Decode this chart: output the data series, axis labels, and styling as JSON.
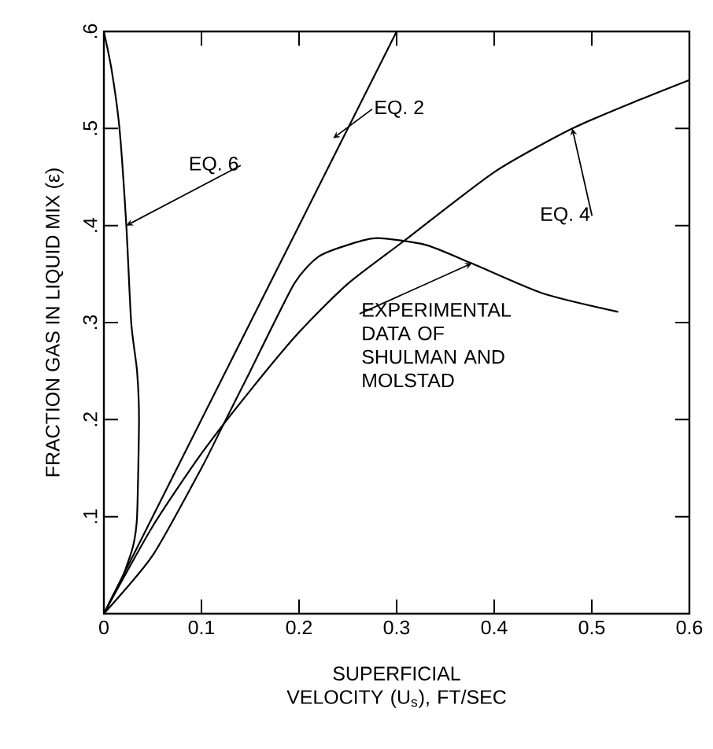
{
  "chart_data": {
    "type": "line",
    "xlabel": "SUPERFICIAL VELOCITY (U$_{s}$), FT/SEC",
    "ylabel": "FRACTION GAS IN LIQUID MIX (ε)",
    "xlim": [
      0,
      0.6
    ],
    "ylim": [
      0,
      0.6
    ],
    "xticks": [
      0,
      {
        "value": 0.1,
        "label": "0.1"
      },
      {
        "value": 0.2,
        "label": "0.2"
      },
      {
        "value": 0.3,
        "label": "0.3"
      },
      {
        "value": 0.4,
        "label": "0.4"
      },
      {
        "value": 0.5,
        "label": "0.5"
      },
      {
        "value": 0.6,
        "label": "0.6"
      }
    ],
    "yticks": [
      {
        "value": 0,
        "label": null
      },
      {
        "value": 0.1,
        "label": ".1"
      },
      {
        "value": 0.2,
        "label": ".2"
      },
      {
        "value": 0.3,
        "label": ".3"
      },
      {
        "value": 0.4,
        "label": ".4"
      },
      {
        "value": 0.5,
        "label": ".5"
      },
      {
        "value": 0.6,
        "label": ".6"
      }
    ],
    "grid": false,
    "marker": "none",
    "line_style": "solid",
    "series": [
      {
        "color": "#000000",
        "x": [
          0,
          0.01,
          0.02,
          0.03,
          0.034,
          0.036,
          0.034,
          0.028,
          0.023,
          0.016,
          0.008,
          0
        ],
        "values": [
          0,
          0.02,
          0.04,
          0.07,
          0.1,
          0.2,
          0.25,
          0.3,
          0.4,
          0.5,
          0.56,
          0.6
        ]
      },
      {
        "color": "#000000",
        "x": [
          0,
          0.1,
          0.2,
          0.3
        ],
        "values": [
          0,
          0.2,
          0.4,
          0.6
        ]
      },
      {
        "color": "#000000",
        "x": [
          0,
          0.05,
          0.1,
          0.15,
          0.2,
          0.25,
          0.31,
          0.4,
          0.48,
          0.55,
          0.6
        ],
        "values": [
          0,
          0.09,
          0.165,
          0.23,
          0.29,
          0.34,
          0.386,
          0.455,
          0.5,
          0.53,
          0.55
        ]
      },
      {
        "color": "#000000",
        "x": [
          0,
          0.05,
          0.1,
          0.12,
          0.15,
          0.195,
          0.22,
          0.25,
          0.28,
          0.33,
          0.377,
          0.45,
          0.527
        ],
        "values": [
          0,
          0.06,
          0.15,
          0.19,
          0.25,
          0.34,
          0.368,
          0.38,
          0.387,
          0.38,
          0.361,
          0.33,
          0.311
        ]
      }
    ],
    "annotations": [
      {
        "text": "EQ. 6",
        "x": 0.023,
        "y": 0.4
      },
      {
        "text": "EQ. 2",
        "x": 0.235,
        "y": 0.49
      },
      {
        "text": "EQ. 4",
        "x": 0.48,
        "y": 0.5
      },
      {
        "text": "EXPERIMENTAL DATA OF SHULMAN AND MOLSTAD",
        "x": 0.377,
        "y": 0.361
      }
    ]
  }
}
